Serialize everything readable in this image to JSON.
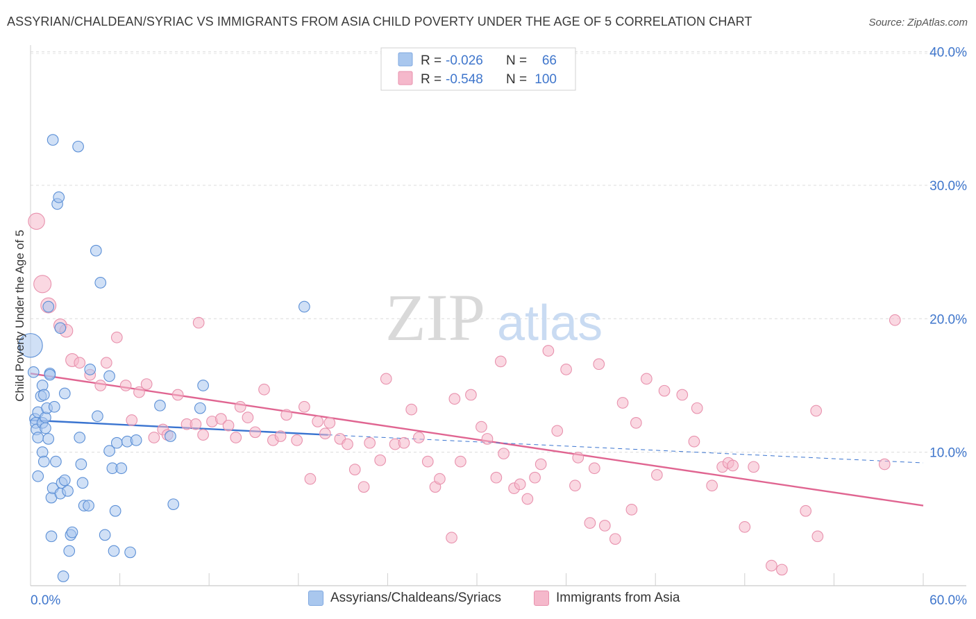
{
  "title": "ASSYRIAN/CHALDEAN/SYRIAC VS IMMIGRANTS FROM ASIA CHILD POVERTY UNDER THE AGE OF 5 CORRELATION CHART",
  "source": "Source: ZipAtlas.com",
  "watermark": {
    "zip": "ZIP",
    "atlas": "atlas"
  },
  "stats_legend": [
    {
      "r_label": "R =",
      "r_value": "-0.026",
      "n_label": "N =",
      "n_value": "66",
      "color": "#a9c7ee"
    },
    {
      "r_label": "R =",
      "r_value": "-0.548",
      "n_label": "N =",
      "n_value": "100",
      "color": "#f5b8cb"
    }
  ],
  "bottom_legend": [
    {
      "label": "Assyrians/Chaldeans/Syriacs",
      "color": "#a9c7ee"
    },
    {
      "label": "Immigrants from Asia",
      "color": "#f5b8cb"
    }
  ],
  "colors": {
    "blue_fill": "#a9c7ee",
    "blue_stroke": "#5b8fd6",
    "blue_line": "#3a74d0",
    "pink_fill": "#f5b8cb",
    "pink_stroke": "#e891ad",
    "pink_line": "#e06591",
    "axis_label": "#3f76cc"
  },
  "chart_data": {
    "type": "scatter",
    "title": "ASSYRIAN/CHALDEAN/SYRIAC VS IMMIGRANTS FROM ASIA CHILD POVERTY UNDER THE AGE OF 5 CORRELATION CHART",
    "xlabel": "",
    "ylabel": "Child Poverty Under the Age of 5",
    "xlim": [
      0,
      60
    ],
    "ylim": [
      0,
      40.5
    ],
    "x_tick_labels": [
      {
        "value": 0,
        "label": "0.0%"
      },
      {
        "value": 60,
        "label": "60.0%"
      }
    ],
    "y_tick_labels": [
      {
        "value": 10,
        "label": "10.0%"
      },
      {
        "value": 20,
        "label": "20.0%"
      },
      {
        "value": 30,
        "label": "30.0%"
      },
      {
        "value": 40,
        "label": "40.0%"
      }
    ],
    "grid": "horizontal dashed",
    "series": [
      {
        "name": "Assyrians/Chaldeans/Syriacs",
        "r": -0.026,
        "n": 66,
        "trend": {
          "x0": 0,
          "y0": 12.4,
          "x1": 20,
          "y1": 11.3,
          "dash_x1": 60,
          "dash_y1": 9.2
        },
        "points": [
          [
            0,
            18,
            22
          ],
          [
            0.2,
            16,
            10
          ],
          [
            0.3,
            12.5,
            10
          ],
          [
            0.35,
            12.2,
            10
          ],
          [
            0.4,
            11.7,
            10
          ],
          [
            0.5,
            13,
            10
          ],
          [
            0.5,
            11.1,
            10
          ],
          [
            0.5,
            8.2,
            10
          ],
          [
            0.7,
            14.2,
            10
          ],
          [
            0.8,
            12.2,
            10
          ],
          [
            0.8,
            15,
            10
          ],
          [
            0.8,
            10,
            10
          ],
          [
            0.9,
            9.3,
            10
          ],
          [
            0.9,
            14.3,
            10
          ],
          [
            1,
            12.6,
            10
          ],
          [
            1,
            11.8,
            10
          ],
          [
            1.1,
            13.3,
            10
          ],
          [
            1.2,
            11,
            10
          ],
          [
            1.2,
            20.9,
            10
          ],
          [
            1.3,
            15.9,
            10
          ],
          [
            1.3,
            15.8,
            10
          ],
          [
            1.4,
            3.7,
            10
          ],
          [
            1.4,
            6.6,
            10
          ],
          [
            1.5,
            33.4,
            10
          ],
          [
            1.5,
            7.3,
            10
          ],
          [
            1.6,
            13.4,
            10
          ],
          [
            1.7,
            9.3,
            10
          ],
          [
            1.8,
            28.6,
            10
          ],
          [
            1.9,
            29.1,
            10
          ],
          [
            2,
            19.3,
            10
          ],
          [
            2,
            6.9,
            10
          ],
          [
            2.1,
            7.7,
            10
          ],
          [
            2.2,
            0.7,
            10
          ],
          [
            2.3,
            14.4,
            10
          ],
          [
            2.3,
            7.9,
            10
          ],
          [
            2.5,
            7.1,
            10
          ],
          [
            2.6,
            2.6,
            10
          ],
          [
            2.7,
            3.8,
            10
          ],
          [
            2.8,
            4,
            10
          ],
          [
            3.2,
            32.9,
            10
          ],
          [
            3.3,
            11.1,
            10
          ],
          [
            3.4,
            9.1,
            10
          ],
          [
            3.5,
            7.7,
            10
          ],
          [
            3.6,
            6,
            10
          ],
          [
            3.9,
            6,
            10
          ],
          [
            4.0,
            16.2,
            10
          ],
          [
            4.4,
            25.1,
            10
          ],
          [
            4.5,
            12.7,
            10
          ],
          [
            4.7,
            22.7,
            10
          ],
          [
            5.0,
            3.8,
            10
          ],
          [
            5.3,
            15.7,
            10
          ],
          [
            5.3,
            10.1,
            10
          ],
          [
            5.5,
            8.8,
            10
          ],
          [
            5.6,
            2.6,
            10
          ],
          [
            5.7,
            5.6,
            10
          ],
          [
            5.8,
            10.7,
            10
          ],
          [
            6.1,
            8.8,
            10
          ],
          [
            6.5,
            10.8,
            10
          ],
          [
            6.7,
            2.5,
            10
          ],
          [
            7.1,
            10.9,
            10
          ],
          [
            8.7,
            13.5,
            10
          ],
          [
            9.4,
            11.2,
            10
          ],
          [
            9.6,
            6.1,
            10
          ],
          [
            11.4,
            13.3,
            10
          ],
          [
            11.6,
            15,
            10
          ],
          [
            18.4,
            20.9,
            10
          ]
        ]
      },
      {
        "name": "Immigrants from Asia",
        "r": -0.548,
        "n": 100,
        "trend": {
          "x0": 0,
          "y0": 15.9,
          "x1": 60,
          "y1": 6.0
        },
        "points": [
          [
            0.4,
            27.3,
            15
          ],
          [
            0.8,
            22.6,
            16
          ],
          [
            1.2,
            21,
            14
          ],
          [
            2,
            19.5,
            12
          ],
          [
            2.4,
            19.1,
            12
          ],
          [
            2.8,
            16.9,
            12
          ],
          [
            3.3,
            16.7,
            10
          ],
          [
            4.0,
            15.8,
            10
          ],
          [
            4.7,
            15.0,
            10
          ],
          [
            5.1,
            16.7,
            10
          ],
          [
            5.8,
            18.6,
            10
          ],
          [
            6.4,
            15,
            10
          ],
          [
            6.8,
            12.4,
            10
          ],
          [
            7.3,
            14.5,
            10
          ],
          [
            7.8,
            15.1,
            10
          ],
          [
            8.3,
            11.1,
            10
          ],
          [
            8.9,
            11.7,
            10
          ],
          [
            9.2,
            11.3,
            10
          ],
          [
            9.9,
            14.3,
            10
          ],
          [
            10.5,
            12.1,
            10
          ],
          [
            11.1,
            12.1,
            10
          ],
          [
            11.3,
            19.7,
            10
          ],
          [
            11.6,
            11.3,
            10
          ],
          [
            12.2,
            12.3,
            10
          ],
          [
            12.8,
            12.5,
            10
          ],
          [
            13.3,
            12.0,
            10
          ],
          [
            13.8,
            11.1,
            10
          ],
          [
            14.1,
            13.4,
            10
          ],
          [
            14.6,
            12.6,
            10
          ],
          [
            15.1,
            11.5,
            10
          ],
          [
            15.7,
            14.7,
            10
          ],
          [
            16.3,
            10.9,
            10
          ],
          [
            16.8,
            11.2,
            10
          ],
          [
            17.2,
            12.8,
            10
          ],
          [
            17.9,
            10.9,
            10
          ],
          [
            18.4,
            13.4,
            10
          ],
          [
            18.8,
            8,
            10
          ],
          [
            19.3,
            12.3,
            10
          ],
          [
            19.8,
            11.4,
            10
          ],
          [
            20.1,
            12.2,
            10
          ],
          [
            20.8,
            11,
            10
          ],
          [
            21.3,
            10.6,
            10
          ],
          [
            21.8,
            8.7,
            10
          ],
          [
            22.4,
            7.4,
            10
          ],
          [
            22.8,
            10.7,
            10
          ],
          [
            23.5,
            9.4,
            10
          ],
          [
            23.9,
            15.5,
            10
          ],
          [
            24.5,
            10.6,
            10
          ],
          [
            25.1,
            10.7,
            10
          ],
          [
            25.6,
            13.2,
            10
          ],
          [
            26.1,
            11.1,
            10
          ],
          [
            26.7,
            9.3,
            10
          ],
          [
            27.2,
            7.4,
            10
          ],
          [
            27.5,
            8,
            10
          ],
          [
            28.3,
            3.6,
            10
          ],
          [
            28.5,
            14,
            10
          ],
          [
            28.9,
            9.3,
            10
          ],
          [
            29.6,
            14.3,
            10
          ],
          [
            30.3,
            11.9,
            10
          ],
          [
            30.7,
            11,
            10
          ],
          [
            31.3,
            8.1,
            10
          ],
          [
            31.6,
            16.8,
            10
          ],
          [
            31.8,
            9.9,
            10
          ],
          [
            32.5,
            7.3,
            10
          ],
          [
            32.9,
            7.6,
            10
          ],
          [
            33.4,
            6.5,
            10
          ],
          [
            33.9,
            8.1,
            10
          ],
          [
            34.3,
            9.1,
            10
          ],
          [
            34.8,
            17.6,
            10
          ],
          [
            35.4,
            11.6,
            10
          ],
          [
            36,
            16.2,
            10
          ],
          [
            36.6,
            7.5,
            10
          ],
          [
            36.8,
            9.6,
            10
          ],
          [
            37.6,
            4.7,
            10
          ],
          [
            37.9,
            8.8,
            10
          ],
          [
            38.2,
            16.6,
            10
          ],
          [
            38.6,
            4.5,
            10
          ],
          [
            39.3,
            3.5,
            10
          ],
          [
            39.8,
            13.7,
            10
          ],
          [
            40.4,
            5.7,
            10
          ],
          [
            40.7,
            12.2,
            10
          ],
          [
            41.4,
            15.5,
            10
          ],
          [
            42.1,
            8.3,
            10
          ],
          [
            42.6,
            14.6,
            10
          ],
          [
            43.8,
            14.3,
            10
          ],
          [
            44.6,
            10.8,
            10
          ],
          [
            44.8,
            13.3,
            10
          ],
          [
            45.8,
            7.5,
            10
          ],
          [
            46.5,
            8.9,
            10
          ],
          [
            46.9,
            9.2,
            10
          ],
          [
            47.2,
            9,
            10
          ],
          [
            48,
            4.4,
            10
          ],
          [
            48.6,
            8.9,
            10
          ],
          [
            49.8,
            1.5,
            10
          ],
          [
            50.5,
            1.2,
            10
          ],
          [
            52.1,
            5.6,
            10
          ],
          [
            52.8,
            13.1,
            10
          ],
          [
            52.9,
            3.7,
            10
          ],
          [
            57.4,
            9.1,
            10
          ],
          [
            58.1,
            19.9,
            10
          ]
        ]
      }
    ]
  }
}
